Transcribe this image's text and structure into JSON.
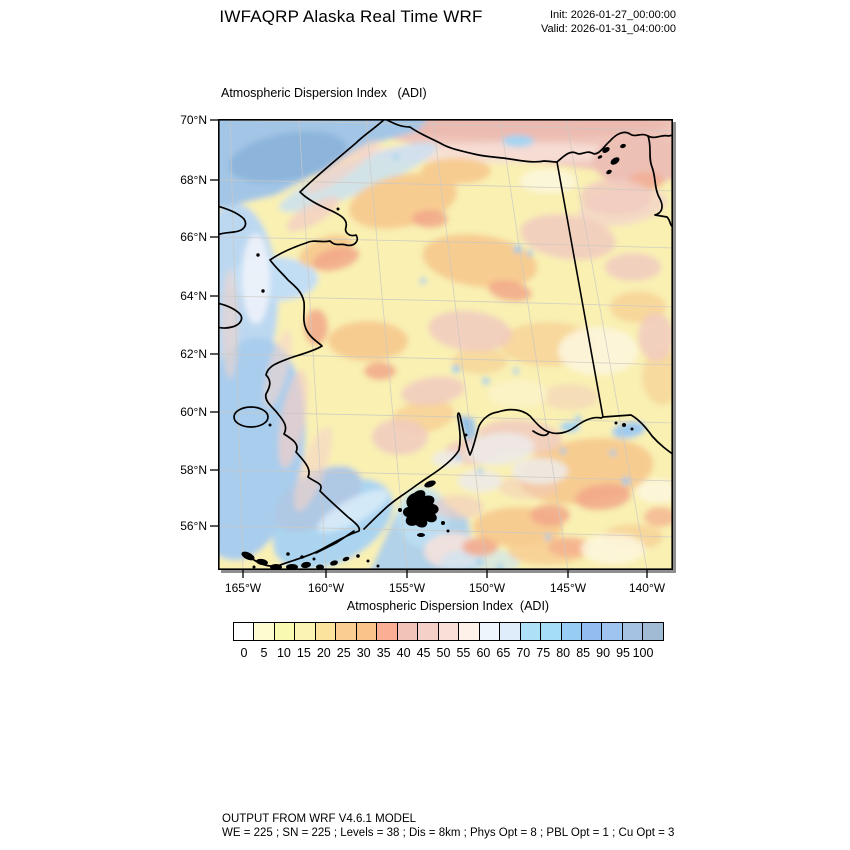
{
  "header": {
    "title": "IWFAQRP Alaska Real Time WRF",
    "init": "Init: 2026-01-27_00:00:00",
    "valid": "Valid: 2026-01-31_04:00:00"
  },
  "map": {
    "subtitle": "Atmospheric Dispersion Index   (ADI)",
    "lat_ticks": [
      "70°N",
      "68°N",
      "66°N",
      "64°N",
      "62°N",
      "60°N",
      "58°N",
      "56°N"
    ],
    "lon_ticks": [
      "165°W",
      "160°W",
      "155°W",
      "150°W",
      "145°W",
      "140°W"
    ]
  },
  "colorbar": {
    "title": "Atmospheric Dispersion Index  (ADI)",
    "tick_labels": [
      "0",
      "5",
      "10",
      "15",
      "20",
      "25",
      "30",
      "35",
      "40",
      "45",
      "50",
      "55",
      "60",
      "65",
      "70",
      "75",
      "80",
      "85",
      "90",
      "95",
      "100"
    ],
    "colors": [
      "#FFFFFF",
      "#FCFCD0",
      "#F9F9B1",
      "#FAF3B3",
      "#FBE39E",
      "#FACD92",
      "#F9C489",
      "#FAAE93",
      "#F2C4B9",
      "#F5D0C9",
      "#F8DFD8",
      "#FDF1EA",
      "#EFF5FC",
      "#DFEDFB",
      "#AEE0F8",
      "#A5DCF6",
      "#97CDF4",
      "#93BDF0",
      "#A0C4F0",
      "#A6C2E2",
      "#A1BBD5"
    ],
    "value_range": [
      0,
      100
    ],
    "step": 5
  },
  "footer": {
    "line1": "OUTPUT FROM WRF V4.6.1 MODEL",
    "line2": "WE = 225 ; SN = 225 ; Levels = 38 ; Dis = 8km ; Phys Opt = 8 ; PBL Opt = 1 ; Cu Opt = 3"
  }
}
